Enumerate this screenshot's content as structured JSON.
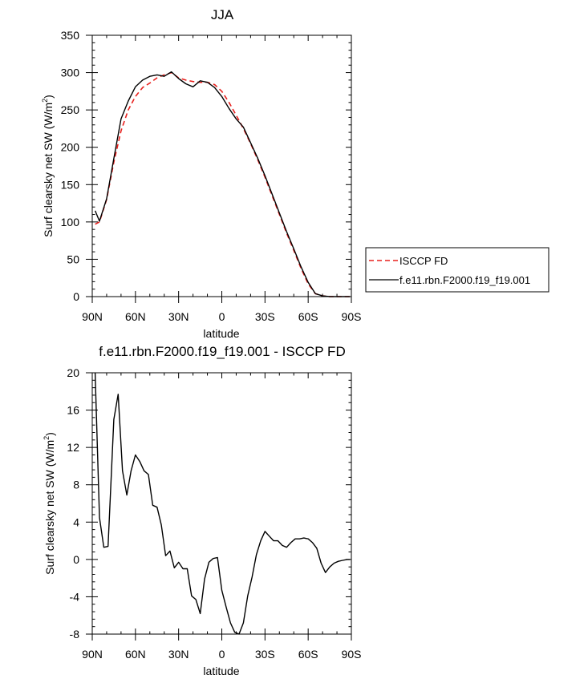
{
  "chart_data": [
    {
      "type": "line",
      "title": "JJA",
      "xlabel": "latitude",
      "ylabel": "Surf clearsky net SW (W/m",
      "ylabel_sup": "2",
      "ylabel_close": ")",
      "xlim": [
        90,
        -90
      ],
      "ylim": [
        0,
        350
      ],
      "xticks": [
        90,
        60,
        30,
        0,
        -30,
        -60,
        -90
      ],
      "xtick_labels": [
        "90N",
        "60N",
        "30N",
        "0",
        "30S",
        "60S",
        "90S"
      ],
      "yticks": [
        0,
        50,
        100,
        150,
        200,
        250,
        300,
        350
      ],
      "ytick_labels": [
        "0",
        "50",
        "100",
        "150",
        "200",
        "250",
        "300",
        "350"
      ],
      "grid": false,
      "legend_position": "right",
      "series": [
        {
          "name": "ISCCP FD",
          "color": "#e8201d",
          "dash": "dashed",
          "x": [
            88,
            85,
            80,
            75,
            70,
            65,
            60,
            55,
            50,
            45,
            40,
            35,
            30,
            25,
            20,
            15,
            10,
            5,
            0,
            -5,
            -10,
            -15,
            -20,
            -25,
            -30,
            -35,
            -40,
            -45,
            -50,
            -55,
            -60,
            -65,
            -70,
            -75,
            -80,
            -85,
            -89
          ],
          "y": [
            97,
            100,
            130,
            180,
            222,
            250,
            268,
            280,
            286,
            293,
            297,
            300,
            293,
            290,
            288,
            287,
            287,
            284,
            275,
            260,
            243,
            225,
            205,
            183,
            160,
            135,
            110,
            85,
            62,
            38,
            17,
            4,
            1,
            0,
            0,
            0,
            0
          ]
        },
        {
          "name": "f.e11.rbn.F2000.f19_f19.001",
          "color": "#000000",
          "dash": "solid",
          "x": [
            88,
            85,
            80,
            75,
            70,
            65,
            60,
            55,
            50,
            45,
            40,
            35,
            30,
            25,
            20,
            15,
            10,
            5,
            0,
            -5,
            -10,
            -15,
            -20,
            -25,
            -30,
            -35,
            -40,
            -45,
            -50,
            -55,
            -60,
            -65,
            -70,
            -75,
            -80,
            -85,
            -89
          ],
          "y": [
            115,
            101,
            131,
            185,
            238,
            262,
            281,
            290,
            295,
            297,
            295,
            301,
            292,
            285,
            281,
            289,
            287,
            280,
            268,
            252,
            238,
            227,
            206,
            185,
            162,
            137,
            112,
            87,
            64,
            40,
            19,
            4,
            1,
            0,
            0,
            0,
            0
          ]
        }
      ]
    },
    {
      "type": "line",
      "title": "f.e11.rbn.F2000.f19_f19.001 - ISCCP FD",
      "xlabel": "latitude",
      "ylabel": "Surf clearsky net SW (W/m",
      "ylabel_sup": "2",
      "ylabel_close": ")",
      "xlim": [
        90,
        -90
      ],
      "ylim": [
        -8,
        20
      ],
      "xticks": [
        90,
        60,
        30,
        0,
        -30,
        -60,
        -90
      ],
      "xtick_labels": [
        "90N",
        "60N",
        "30N",
        "0",
        "30S",
        "60S",
        "90S"
      ],
      "yticks": [
        -8,
        -4,
        0,
        4,
        8,
        12,
        16,
        20
      ],
      "ytick_labels": [
        "-8",
        "-4",
        "0",
        "4",
        "8",
        "12",
        "16",
        "20"
      ],
      "grid": false,
      "series": [
        {
          "color": "#000000",
          "dash": "solid",
          "x": [
            88,
            85,
            82,
            79,
            75,
            72,
            69,
            66,
            63,
            60,
            57,
            54,
            51,
            48,
            45,
            42,
            39,
            36,
            33,
            30,
            27,
            24,
            21,
            18,
            15,
            12,
            9,
            6,
            3,
            0,
            -3,
            -6,
            -9,
            -12,
            -15,
            -18,
            -21,
            -24,
            -27,
            -30,
            -33,
            -36,
            -39,
            -42,
            -45,
            -48,
            -51,
            -54,
            -57,
            -60,
            -63,
            -66,
            -69,
            -72,
            -75,
            -78,
            -81,
            -84,
            -87,
            -89
          ],
          "y": [
            20,
            4.5,
            1.3,
            1.4,
            15,
            17.7,
            9.5,
            6.9,
            9.5,
            11.2,
            10.5,
            9.5,
            9.1,
            5.8,
            5.6,
            3.7,
            0.4,
            0.9,
            -0.9,
            -0.3,
            -1.0,
            -1.0,
            -3.9,
            -4.3,
            -5.8,
            -2.1,
            -0.3,
            0.1,
            0.2,
            -3.3,
            -5.1,
            -6.8,
            -7.8,
            -8.0,
            -6.8,
            -3.9,
            -1.9,
            0.5,
            2.0,
            3.0,
            2.5,
            2.0,
            2.0,
            1.5,
            1.3,
            1.8,
            2.2,
            2.2,
            2.3,
            2.2,
            1.8,
            1.2,
            -0.4,
            -1.4,
            -0.8,
            -0.4,
            -0.2,
            -0.1,
            0,
            0
          ]
        }
      ]
    }
  ]
}
